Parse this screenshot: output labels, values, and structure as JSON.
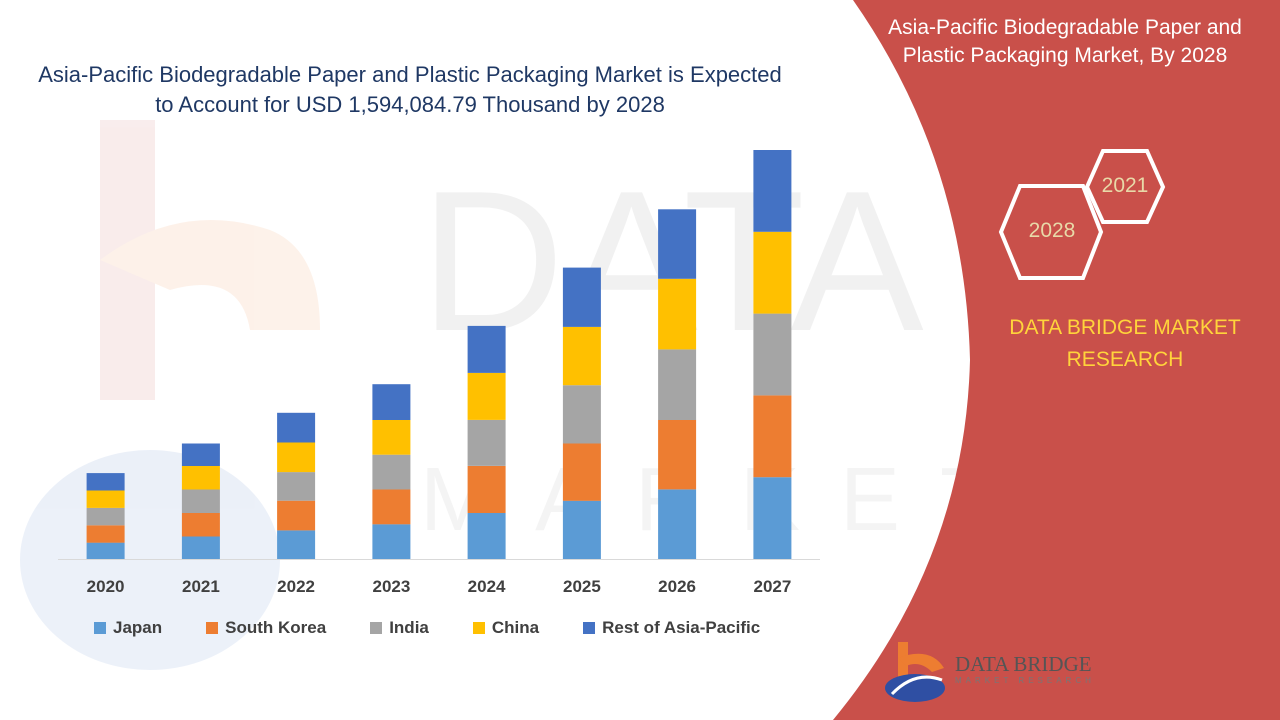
{
  "colors": {
    "panel": "#c9504a",
    "title": "#1f3864",
    "brand_text": "#ffd43b",
    "hex_stroke": "#ffffff",
    "series": [
      "#5b9bd5",
      "#ed7d31",
      "#a5a5a5",
      "#ffc000",
      "#4472c4"
    ]
  },
  "panel": {
    "title": "Asia-Pacific Biodegradable Paper and Plastic Packaging Market, By 2028",
    "hex_front": "2028",
    "hex_back": "2021",
    "brand": "DATA BRIDGE MARKET RESEARCH",
    "logo_name": "DATA BRIDGE",
    "logo_sub": "MARKET RESEARCH"
  },
  "watermark": {
    "text": "DATA BRIDGE",
    "subtext": "MARKET RESEARCH"
  },
  "chart_data": {
    "type": "bar",
    "stacked": true,
    "title": "Asia-Pacific Biodegradable Paper and Plastic Packaging Market is Expected to Account  for USD 1,594,084.79 Thousand  by 2028",
    "xlabel": "",
    "ylabel": "",
    "categories": [
      "2020",
      "2021",
      "2022",
      "2023",
      "2024",
      "2025",
      "2026",
      "2027"
    ],
    "ylim": [
      0,
      400
    ],
    "grid": false,
    "legend": "bottom",
    "series": [
      {
        "name": "Japan",
        "values": [
          16,
          22,
          28,
          34,
          45,
          57,
          68,
          80
        ]
      },
      {
        "name": "South Korea",
        "values": [
          17,
          23,
          29,
          34,
          46,
          56,
          68,
          80
        ]
      },
      {
        "name": "India",
        "values": [
          17,
          23,
          28,
          34,
          45,
          57,
          69,
          80
        ]
      },
      {
        "name": "China",
        "values": [
          17,
          23,
          29,
          34,
          46,
          57,
          69,
          80
        ]
      },
      {
        "name": "Rest of Asia-Pacific",
        "values": [
          17,
          22,
          29,
          35,
          46,
          58,
          68,
          80
        ]
      }
    ]
  }
}
